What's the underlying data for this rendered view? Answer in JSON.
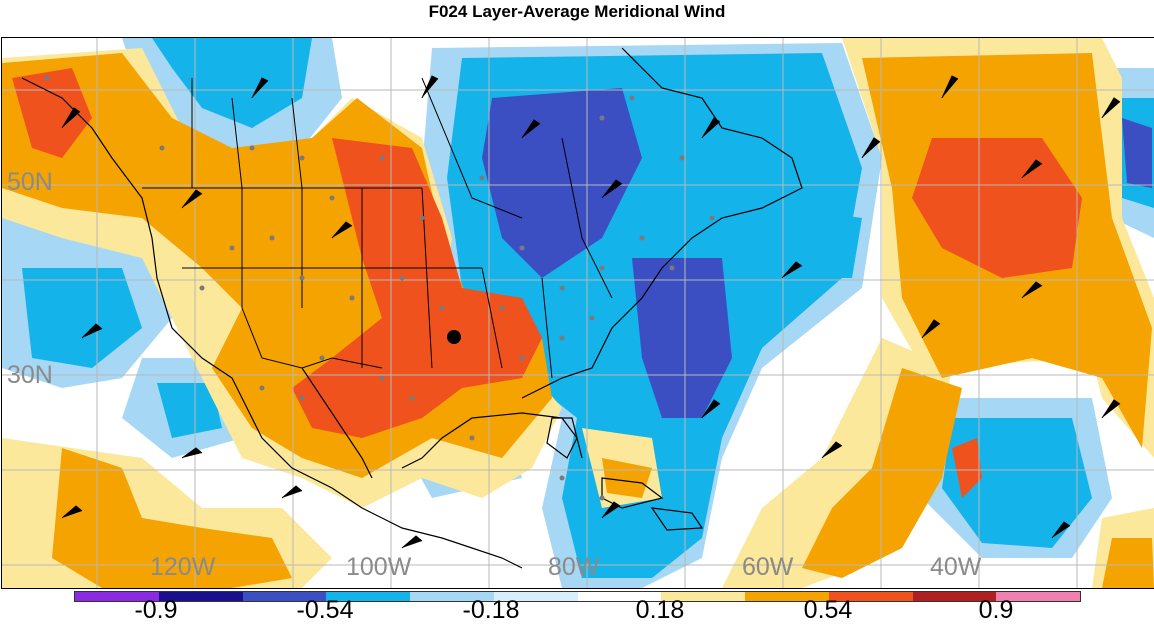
{
  "title": "F024 Layer-Average Meridional Wind",
  "map": {
    "lat_labels": [
      "50N",
      "30N"
    ],
    "lon_labels": [
      "120W",
      "100W",
      "80W",
      "60W",
      "40W"
    ],
    "colors": {
      "dark_blue": "#3b4fc2",
      "blue": "#14b3ea",
      "light_blue": "#a6d8f5",
      "white": "#ffffff",
      "light_yellow": "#fbe89a",
      "orange": "#f5a300",
      "red_orange": "#f0521e",
      "dark_red": "#b02020",
      "border_line": "#000000",
      "grid_line": "#b8b8b8",
      "station_dot": "#7a7a7a"
    }
  },
  "colorbar": {
    "labels": [
      "-0.9",
      "-0.54",
      "-0.18",
      "0.18",
      "0.54",
      "0.9"
    ],
    "colors": [
      "#8a2be2",
      "#1a0f8f",
      "#3b4fc2",
      "#14b3ea",
      "#a6d8f5",
      "#d8eefb",
      "#ffffff",
      "#fbe89a",
      "#f5a300",
      "#f0521e",
      "#b02020",
      "#f080b0"
    ]
  }
}
